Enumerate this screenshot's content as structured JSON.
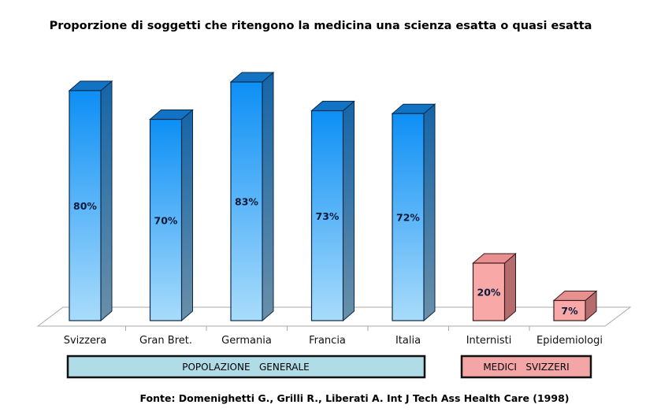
{
  "chart_data": {
    "type": "bar",
    "title": "Proporzione di soggetti che ritengono la medicina una scienza esatta o quasi esatta",
    "categories": [
      "Svizzera",
      "Gran Bret.",
      "Germania",
      "Francia",
      "Italia",
      "Internisti",
      "Epidemiologi"
    ],
    "values": [
      80,
      70,
      83,
      73,
      72,
      20,
      7
    ],
    "data_labels": [
      "80%",
      "70%",
      "83%",
      "73%",
      "72%",
      "20%",
      "7%"
    ],
    "unit": "%",
    "groups": [
      {
        "label": "POPOLAZIONE   GENERALE",
        "categories": [
          "Svizzera",
          "Gran Bret.",
          "Germania",
          "Francia",
          "Italia"
        ],
        "color": "#1e9bf5",
        "box_color": "#b0dce8"
      },
      {
        "label": "MEDICI   SVIZZERI",
        "categories": [
          "Internisti",
          "Epidemiologi"
        ],
        "color": "#f4a6a6",
        "box_color": "#f4a6a6"
      }
    ],
    "style": "3d-column",
    "grid": false,
    "legend": "none",
    "source": "Fonte: Domenighetti G., Grilli R., Liberati A. Int J Tech Ass Health Care (1998)"
  }
}
